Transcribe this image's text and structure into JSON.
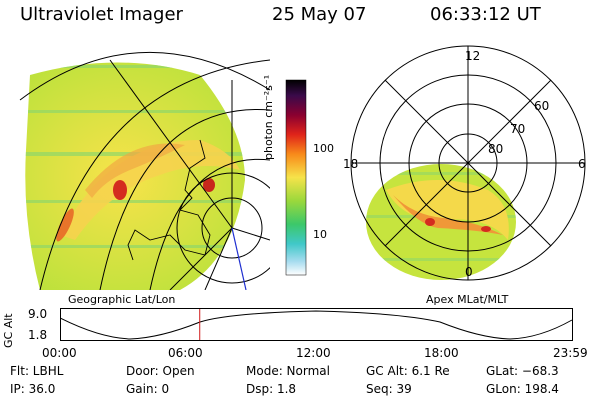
{
  "header": {
    "instrument": "Ultraviolet Imager",
    "date": "25 May 07",
    "time": "06:33:12 UT"
  },
  "left_panel": {
    "label": "Geographic Lat/Lon"
  },
  "right_panel": {
    "label": "Apex MLat/MLT",
    "mlt_labels": {
      "top": "12",
      "left": "18",
      "right": "6",
      "bottom": "0"
    },
    "lat_labels": [
      "60",
      "70",
      "80"
    ]
  },
  "colorbar": {
    "unit_label": "photon cm⁻²s⁻¹",
    "ticks": [
      "100",
      "10"
    ]
  },
  "altitude_plot": {
    "ylabel": "GC Alt",
    "y_ticks": [
      "9.0",
      "1.8"
    ],
    "x_ticks": [
      "00:00",
      "06:00",
      "12:00",
      "18:00",
      "23:59"
    ],
    "current_time_hours": 6.55
  },
  "info": {
    "flt": "Flt: LBHL",
    "ip": "IP: 36.0",
    "door": "Door: Open",
    "gain": "Gain:  0",
    "mode": "Mode: Normal",
    "dsp": "Dsp:    1.8",
    "gc_alt": "GC Alt: 6.1 Re",
    "seq": "Seq: 39",
    "glat": "GLat: −68.3",
    "glon": "GLon: 198.4"
  }
}
